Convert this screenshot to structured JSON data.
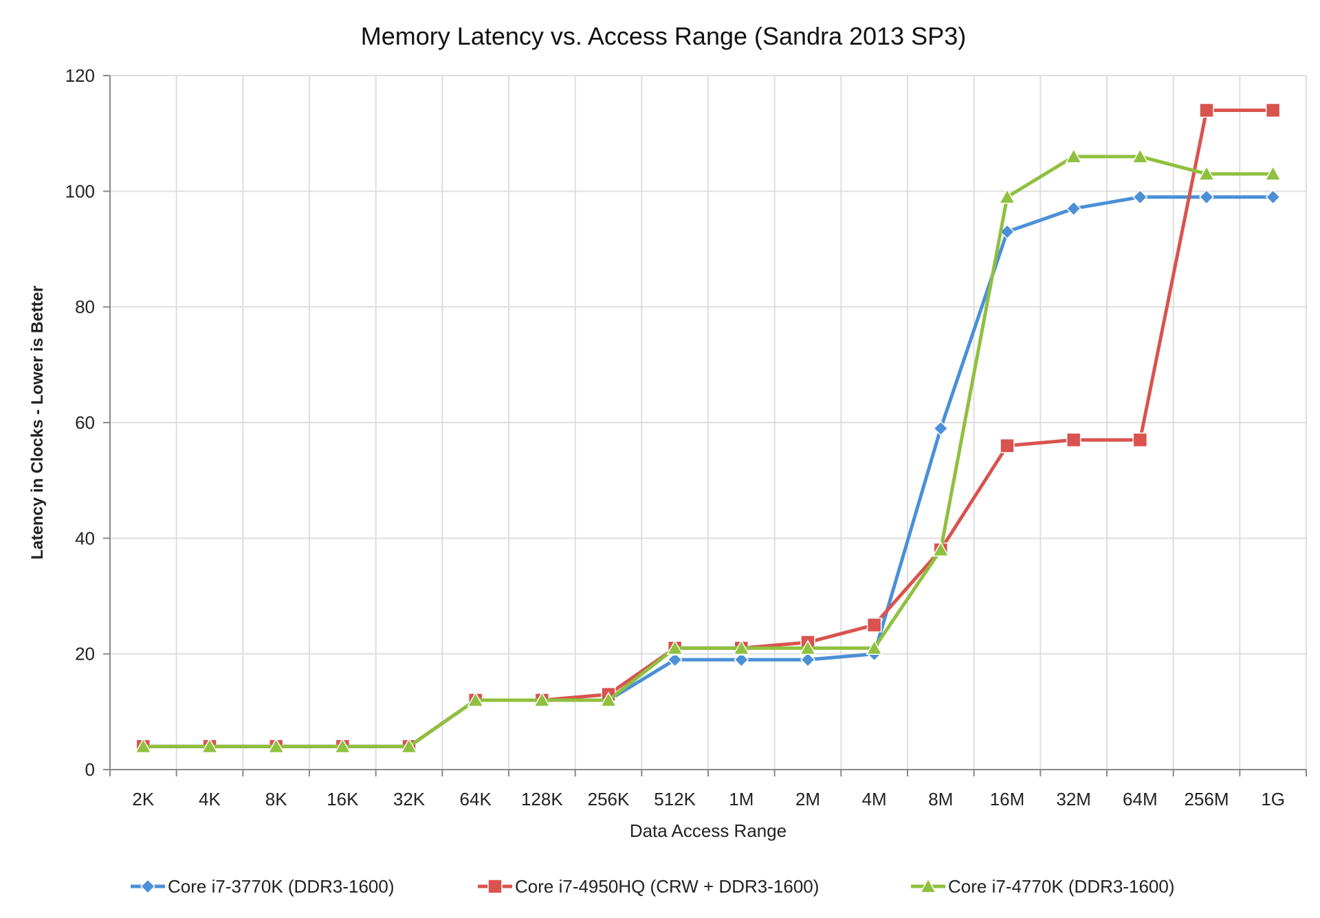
{
  "chart_data": {
    "type": "line",
    "title": "Memory Latency vs. Access Range (Sandra 2013 SP3)",
    "xlabel": "Data Access Range",
    "ylabel": "Latency in Clocks - Lower is Better",
    "categories": [
      "2K",
      "4K",
      "8K",
      "16K",
      "32K",
      "64K",
      "128K",
      "256K",
      "512K",
      "1M",
      "2M",
      "4M",
      "8M",
      "16M",
      "32M",
      "64M",
      "256M",
      "1G"
    ],
    "ylim": [
      0,
      120
    ],
    "yticks": [
      0,
      20,
      40,
      60,
      80,
      100,
      120
    ],
    "grid": true,
    "legend_position": "bottom",
    "series": [
      {
        "name": "Core i7-3770K (DDR3-1600)",
        "color": "#4a8fd8",
        "marker": "diamond",
        "values": [
          4,
          4,
          4,
          4,
          4,
          12,
          12,
          12,
          19,
          19,
          19,
          20,
          59,
          93,
          97,
          99,
          99,
          99
        ]
      },
      {
        "name": "Core i7-4950HQ (CRW + DDR3-1600)",
        "color": "#d9534f",
        "marker": "square",
        "values": [
          4,
          4,
          4,
          4,
          4,
          12,
          12,
          13,
          21,
          21,
          22,
          25,
          38,
          56,
          57,
          57,
          114,
          114
        ]
      },
      {
        "name": "Core i7-4770K (DDR3-1600)",
        "color": "#8fc03f",
        "marker": "triangle",
        "values": [
          4,
          4,
          4,
          4,
          4,
          12,
          12,
          12,
          21,
          21,
          21,
          21,
          38,
          99,
          106,
          106,
          103,
          103
        ]
      }
    ]
  }
}
